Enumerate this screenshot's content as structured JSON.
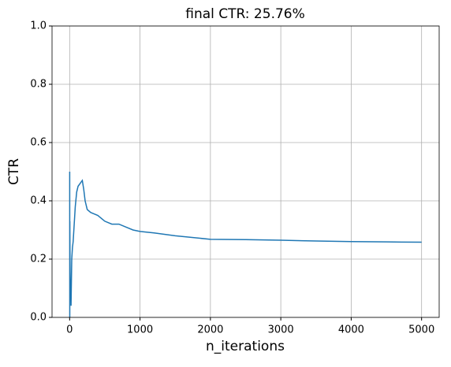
{
  "chart_data": {
    "type": "line",
    "title": "final CTR: 25.76%",
    "x_label": "n_iterations",
    "y_label": "CTR",
    "x": [
      1,
      2,
      3,
      5,
      10,
      15,
      20,
      30,
      40,
      50,
      60,
      80,
      100,
      120,
      150,
      180,
      200,
      220,
      250,
      300,
      350,
      400,
      500,
      600,
      700,
      800,
      900,
      1000,
      1200,
      1500,
      2000,
      2500,
      3000,
      3500,
      4000,
      4500,
      5000
    ],
    "series": [
      {
        "color": "#1f77b4",
        "values": [
          0.5,
          0.0,
          0.33,
          0.2,
          0.1,
          0.13,
          0.04,
          0.2,
          0.24,
          0.26,
          0.3,
          0.38,
          0.43,
          0.45,
          0.46,
          0.47,
          0.44,
          0.4,
          0.37,
          0.36,
          0.355,
          0.35,
          0.33,
          0.32,
          0.32,
          0.31,
          0.3,
          0.295,
          0.29,
          0.28,
          0.268,
          0.267,
          0.265,
          0.262,
          0.26,
          0.259,
          0.258
        ]
      }
    ],
    "xlim": [
      -250,
      5250
    ],
    "xticks": [
      0,
      1000,
      2000,
      3000,
      4000,
      5000
    ],
    "ylim": [
      0,
      1
    ],
    "yticks": [
      {
        "value": 0,
        "label": "0.0"
      },
      0.2,
      0.4,
      0.6,
      0.8,
      {
        "value": 1,
        "label": "1.0"
      }
    ],
    "grid": true
  }
}
